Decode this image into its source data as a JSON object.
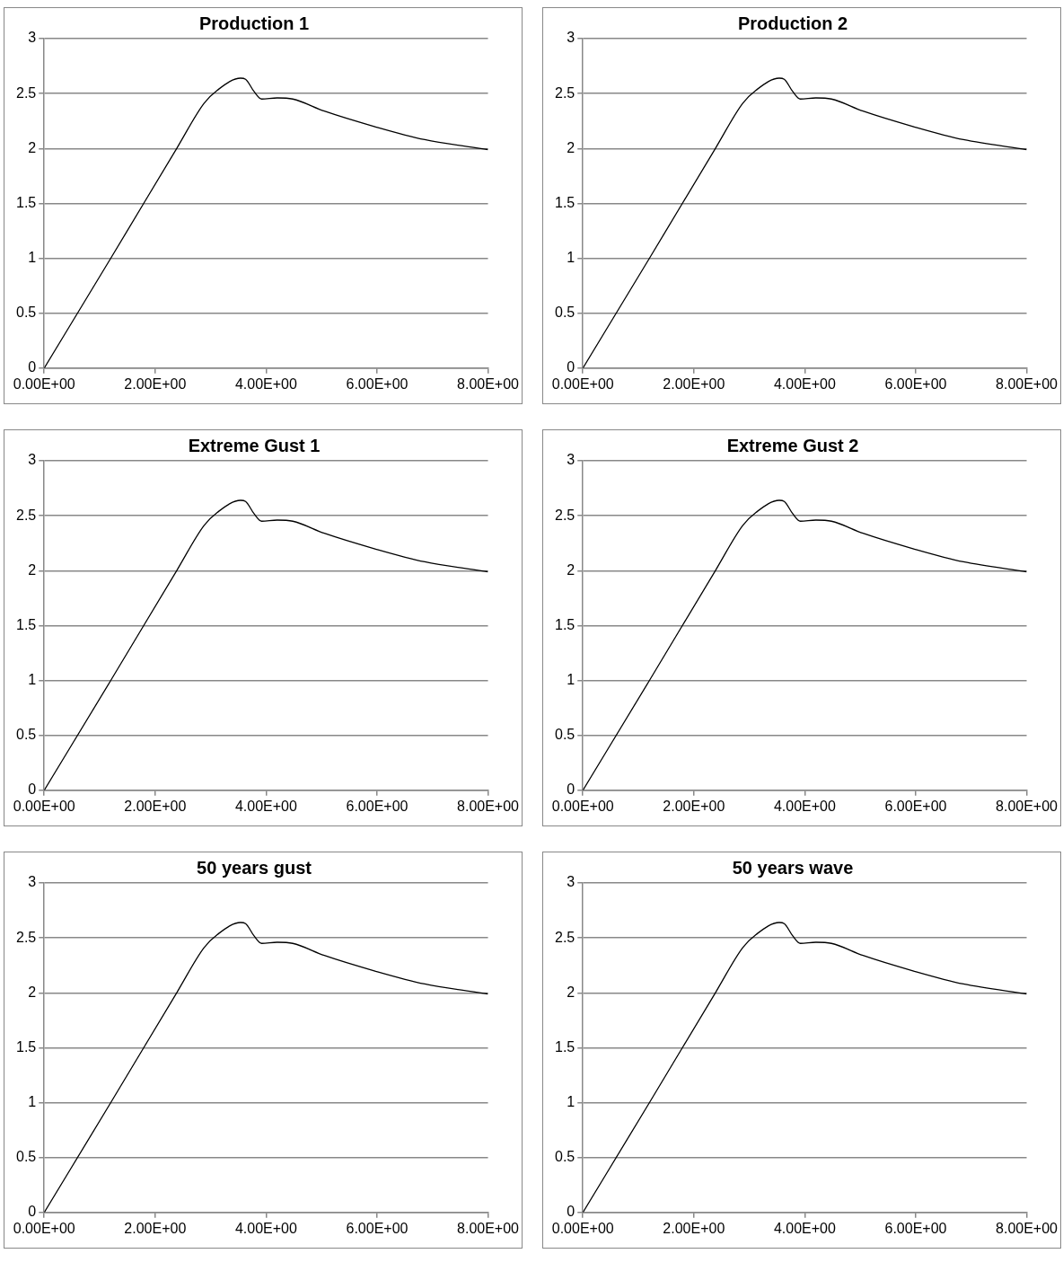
{
  "chart_data": [
    {
      "type": "line",
      "title": "Production 1",
      "x": [
        0,
        1.2,
        2.4,
        2.88,
        3.12,
        3.54,
        3.63,
        3.78,
        3.92,
        4.2,
        4.48,
        5.05,
        5.95,
        6.86,
        8
      ],
      "values": [
        0,
        1.0,
        2.01,
        2.41,
        2.53,
        2.64,
        2.63,
        2.52,
        2.45,
        2.46,
        2.45,
        2.34,
        2.2,
        2.08,
        1.99
      ],
      "color": "#000000",
      "xlim": [
        0,
        8
      ],
      "xticks": [
        {
          "value": 0,
          "label": "0.00E+00"
        },
        {
          "value": 2,
          "label": "2.00E+00"
        },
        {
          "value": 4,
          "label": "4.00E+00"
        },
        {
          "value": 6,
          "label": "6.00E+00"
        },
        {
          "value": 8,
          "label": "8.00E+00"
        }
      ],
      "ylim": [
        0,
        3
      ],
      "yticks": [
        0,
        0.5,
        1,
        1.5,
        2,
        2.5,
        3
      ],
      "grid": "y",
      "marker": "none",
      "line_style": "solid",
      "legend": false
    },
    {
      "type": "line",
      "title": "Production 2",
      "x": [
        0,
        1.2,
        2.4,
        2.88,
        3.12,
        3.54,
        3.63,
        3.78,
        3.92,
        4.2,
        4.48,
        5.05,
        5.95,
        6.86,
        8
      ],
      "values": [
        0,
        1.0,
        2.01,
        2.41,
        2.53,
        2.64,
        2.63,
        2.52,
        2.45,
        2.46,
        2.45,
        2.34,
        2.2,
        2.08,
        1.99
      ],
      "color": "#000000",
      "xlim": [
        0,
        8
      ],
      "xticks": [
        {
          "value": 0,
          "label": "0.00E+00"
        },
        {
          "value": 2,
          "label": "2.00E+00"
        },
        {
          "value": 4,
          "label": "4.00E+00"
        },
        {
          "value": 6,
          "label": "6.00E+00"
        },
        {
          "value": 8,
          "label": "8.00E+00"
        }
      ],
      "ylim": [
        0,
        3
      ],
      "yticks": [
        0,
        0.5,
        1,
        1.5,
        2,
        2.5,
        3
      ],
      "grid": "y",
      "marker": "none",
      "line_style": "solid",
      "legend": false
    },
    {
      "type": "line",
      "title": "Extreme Gust 1",
      "x": [
        0,
        1.2,
        2.4,
        2.88,
        3.12,
        3.54,
        3.63,
        3.78,
        3.92,
        4.2,
        4.48,
        5.05,
        5.95,
        6.86,
        8
      ],
      "values": [
        0,
        1.0,
        2.01,
        2.41,
        2.53,
        2.64,
        2.63,
        2.52,
        2.45,
        2.46,
        2.45,
        2.34,
        2.2,
        2.08,
        1.99
      ],
      "color": "#000000",
      "xlim": [
        0,
        8
      ],
      "xticks": [
        {
          "value": 0,
          "label": "0.00E+00"
        },
        {
          "value": 2,
          "label": "2.00E+00"
        },
        {
          "value": 4,
          "label": "4.00E+00"
        },
        {
          "value": 6,
          "label": "6.00E+00"
        },
        {
          "value": 8,
          "label": "8.00E+00"
        }
      ],
      "ylim": [
        0,
        3
      ],
      "yticks": [
        0,
        0.5,
        1,
        1.5,
        2,
        2.5,
        3
      ],
      "grid": "y",
      "marker": "none",
      "line_style": "solid",
      "legend": false
    },
    {
      "type": "line",
      "title": "Extreme Gust 2",
      "x": [
        0,
        1.2,
        2.4,
        2.88,
        3.12,
        3.54,
        3.63,
        3.78,
        3.92,
        4.2,
        4.48,
        5.05,
        5.95,
        6.86,
        8
      ],
      "values": [
        0,
        1.0,
        2.01,
        2.41,
        2.53,
        2.64,
        2.63,
        2.52,
        2.45,
        2.46,
        2.45,
        2.34,
        2.2,
        2.08,
        1.99
      ],
      "color": "#000000",
      "xlim": [
        0,
        8
      ],
      "xticks": [
        {
          "value": 0,
          "label": "0.00E+00"
        },
        {
          "value": 2,
          "label": "2.00E+00"
        },
        {
          "value": 4,
          "label": "4.00E+00"
        },
        {
          "value": 6,
          "label": "6.00E+00"
        },
        {
          "value": 8,
          "label": "8.00E+00"
        }
      ],
      "ylim": [
        0,
        3
      ],
      "yticks": [
        0,
        0.5,
        1,
        1.5,
        2,
        2.5,
        3
      ],
      "grid": "y",
      "marker": "none",
      "line_style": "solid",
      "legend": false
    },
    {
      "type": "line",
      "title": "50 years gust",
      "x": [
        0,
        1.2,
        2.4,
        2.88,
        3.12,
        3.54,
        3.63,
        3.78,
        3.92,
        4.2,
        4.48,
        5.05,
        5.95,
        6.86,
        8
      ],
      "values": [
        0,
        1.0,
        2.01,
        2.41,
        2.53,
        2.64,
        2.63,
        2.52,
        2.45,
        2.46,
        2.45,
        2.34,
        2.2,
        2.08,
        1.99
      ],
      "color": "#000000",
      "xlim": [
        0,
        8
      ],
      "xticks": [
        {
          "value": 0,
          "label": "0.00E+00"
        },
        {
          "value": 2,
          "label": "2.00E+00"
        },
        {
          "value": 4,
          "label": "4.00E+00"
        },
        {
          "value": 6,
          "label": "6.00E+00"
        },
        {
          "value": 8,
          "label": "8.00E+00"
        }
      ],
      "ylim": [
        0,
        3
      ],
      "yticks": [
        0,
        0.5,
        1,
        1.5,
        2,
        2.5,
        3
      ],
      "grid": "y",
      "marker": "none",
      "line_style": "solid",
      "legend": false
    },
    {
      "type": "line",
      "title": "50 years wave",
      "x": [
        0,
        1.2,
        2.4,
        2.88,
        3.12,
        3.54,
        3.63,
        3.78,
        3.92,
        4.2,
        4.48,
        5.05,
        5.95,
        6.86,
        8
      ],
      "values": [
        0,
        1.0,
        2.01,
        2.41,
        2.53,
        2.64,
        2.63,
        2.52,
        2.45,
        2.46,
        2.45,
        2.34,
        2.2,
        2.08,
        1.99
      ],
      "color": "#000000",
      "xlim": [
        0,
        8
      ],
      "xticks": [
        {
          "value": 0,
          "label": "0.00E+00"
        },
        {
          "value": 2,
          "label": "2.00E+00"
        },
        {
          "value": 4,
          "label": "4.00E+00"
        },
        {
          "value": 6,
          "label": "6.00E+00"
        },
        {
          "value": 8,
          "label": "8.00E+00"
        }
      ],
      "ylim": [
        0,
        3
      ],
      "yticks": [
        0,
        0.5,
        1,
        1.5,
        2,
        2.5,
        3
      ],
      "grid": "y",
      "marker": "none",
      "line_style": "solid",
      "legend": false
    }
  ]
}
